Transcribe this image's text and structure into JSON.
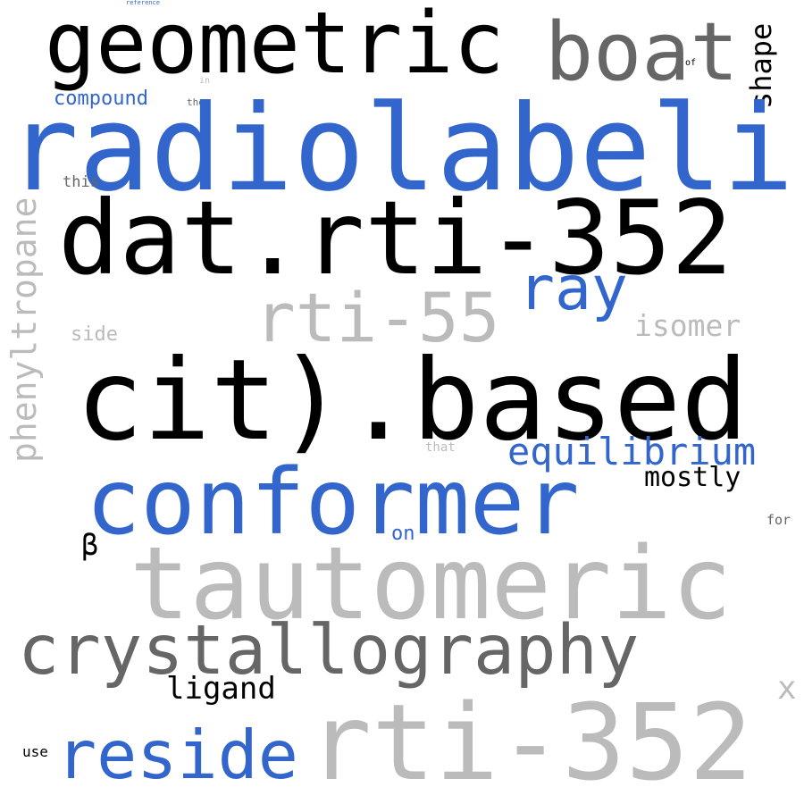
{
  "palette": {
    "blue": "#3366cc",
    "black": "#000000",
    "dark_gray": "#666666",
    "light_gray": "#bbbbbb",
    "background": "#ffffff"
  },
  "words": {
    "reference": "reference",
    "geometric": "geometric",
    "boat": "boat",
    "shape": "shape",
    "of": "of",
    "in": "in",
    "compound": "compound",
    "the": "the",
    "radiolabeling": "radiolabeling",
    "this": "this",
    "phenyltropane": "phenyltropane",
    "dat_rti_352": "dat.rti-352",
    "ray": "ray",
    "rti_55": "rti-55",
    "isomer": "isomer",
    "side": "side",
    "cit_based": "cit).based",
    "that": "that",
    "equilibrium": "equilibrium",
    "mostly": "mostly",
    "conformer": "conformer",
    "beta": "β",
    "on": "on",
    "for": "for",
    "tautomeric": "tautomeric",
    "crystallography": "crystallography",
    "ligand": "ligand",
    "x": "x",
    "use": "use",
    "reside": "reside",
    "rti_352": "rti-352"
  }
}
